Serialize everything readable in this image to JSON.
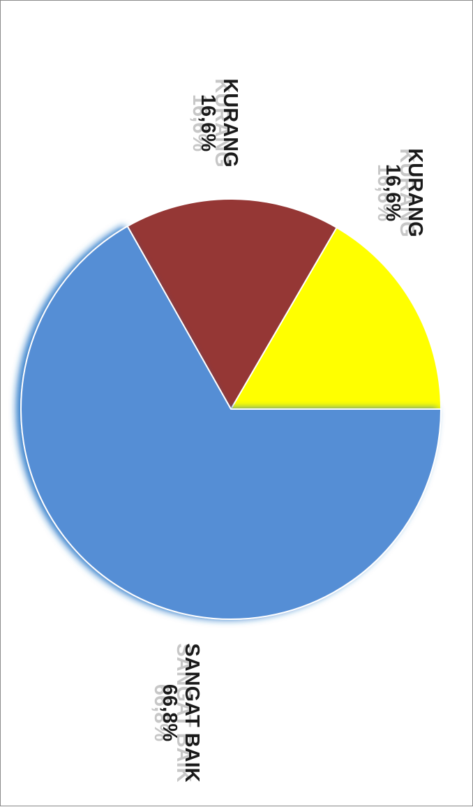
{
  "chart_data": {
    "type": "pie",
    "title": "",
    "slices": [
      {
        "category": "KURANG",
        "value": 16.6,
        "value_label": "16,6%",
        "color": "#FFFF00"
      },
      {
        "category": "KURANG",
        "value": 16.6,
        "value_label": "16,6%",
        "color": "#953735"
      },
      {
        "category": "SANGAT BAIK",
        "value": 66.8,
        "value_label": "66,8%",
        "color": "#558ED5"
      }
    ],
    "legend": "none",
    "orientation": "rotated 90 degrees clockwise"
  }
}
